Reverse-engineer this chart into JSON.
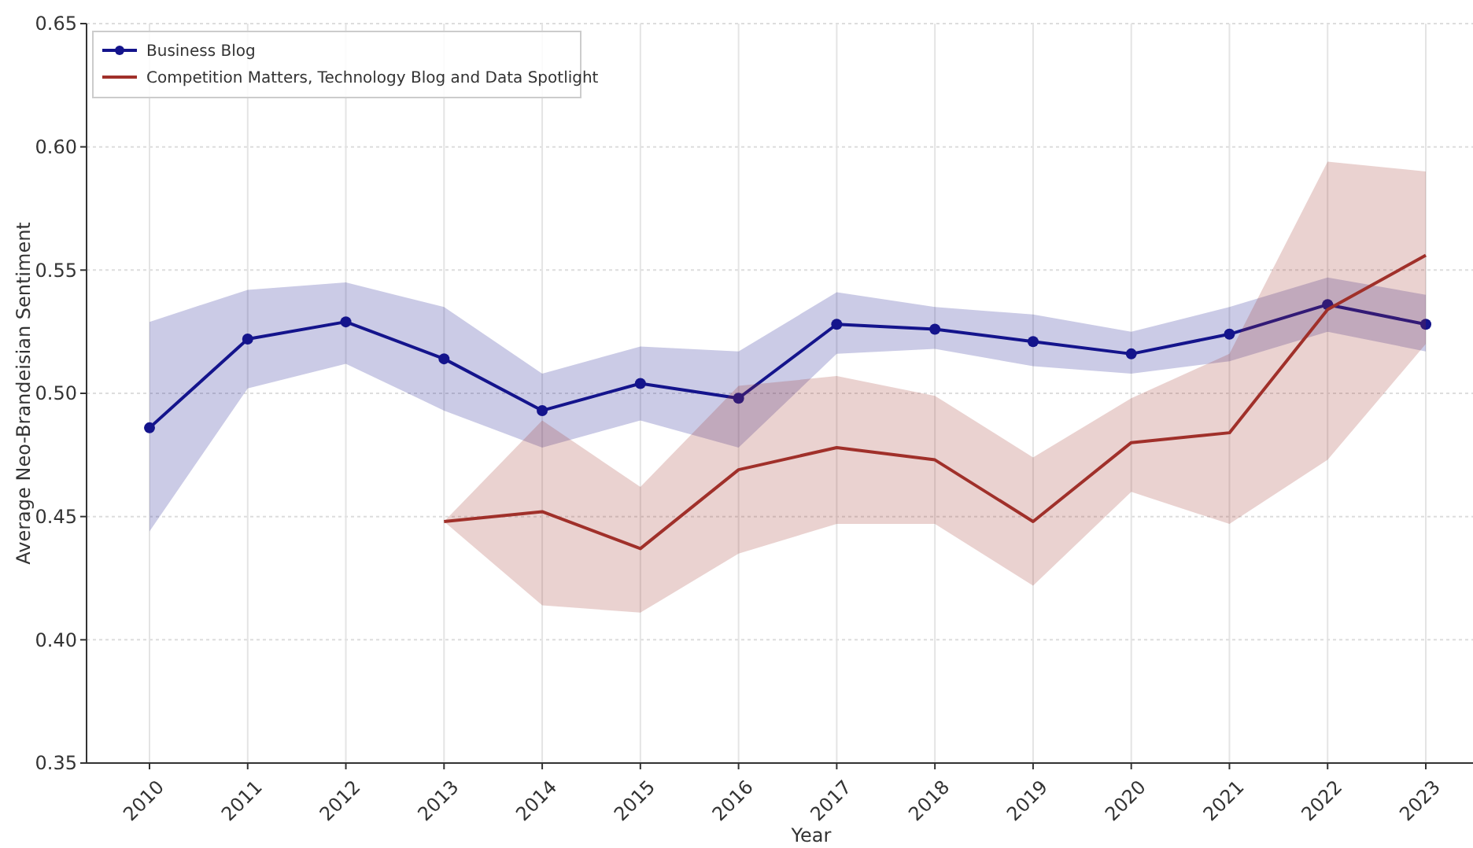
{
  "chart_data": {
    "type": "line",
    "xlabel": "Year",
    "ylabel": "Average Neo-Brandeisian Sentiment",
    "categories": [
      "2010",
      "2011",
      "2012",
      "2013",
      "2014",
      "2015",
      "2016",
      "2017",
      "2018",
      "2019",
      "2020",
      "2021",
      "2022",
      "2023"
    ],
    "series": [
      {
        "name": "Business Blog",
        "color": "#14148c",
        "marker": "circle",
        "values": [
          0.486,
          0.522,
          0.529,
          0.514,
          0.493,
          0.504,
          0.498,
          0.528,
          0.526,
          0.521,
          0.516,
          0.524,
          0.536,
          0.528
        ],
        "lower": [
          0.444,
          0.502,
          0.512,
          0.493,
          0.478,
          0.489,
          0.478,
          0.516,
          0.518,
          0.511,
          0.508,
          0.513,
          0.525,
          0.517
        ],
        "upper": [
          0.529,
          0.542,
          0.545,
          0.535,
          0.508,
          0.519,
          0.517,
          0.541,
          0.535,
          0.532,
          0.525,
          0.535,
          0.547,
          0.54
        ]
      },
      {
        "name": "Competition Matters, Technology Blog and Data Spotlight",
        "color": "#a0302a",
        "marker": "none",
        "values": [
          null,
          null,
          null,
          0.448,
          0.452,
          0.437,
          0.469,
          0.478,
          0.473,
          0.448,
          0.48,
          0.484,
          0.534,
          0.556
        ],
        "lower": [
          null,
          null,
          null,
          0.448,
          0.414,
          0.411,
          0.435,
          0.447,
          0.447,
          0.422,
          0.46,
          0.447,
          0.473,
          0.52
        ],
        "upper": [
          null,
          null,
          null,
          0.448,
          0.489,
          0.462,
          0.503,
          0.507,
          0.499,
          0.474,
          0.498,
          0.516,
          0.594,
          0.59
        ]
      }
    ],
    "ylim": [
      0.35,
      0.65
    ],
    "yticks": [
      {
        "value": 0.35,
        "label": "0.35"
      },
      {
        "value": 0.4,
        "label": "0.40"
      },
      {
        "value": 0.45,
        "label": "0.45"
      },
      {
        "value": 0.5,
        "label": "0.50"
      },
      {
        "value": 0.55,
        "label": "0.55"
      },
      {
        "value": 0.6,
        "label": "0.60"
      },
      {
        "value": 0.65,
        "label": "0.65"
      }
    ],
    "grid": true,
    "legend": "top left",
    "line_style": "solid"
  }
}
